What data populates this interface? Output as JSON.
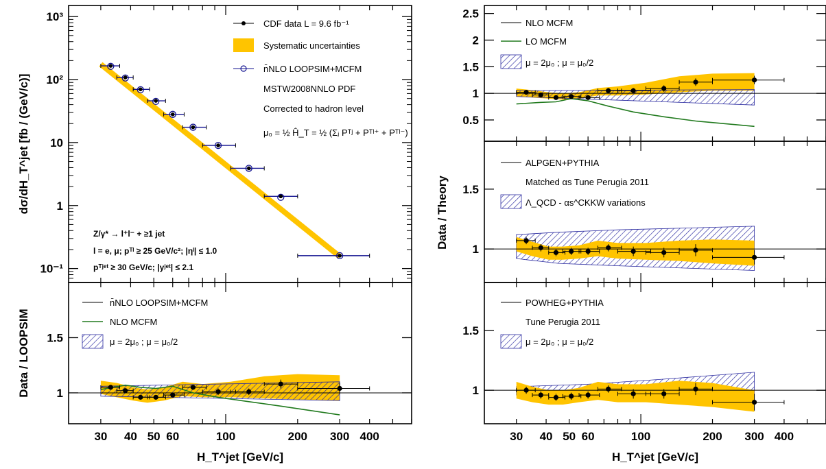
{
  "chart_data": [
    {
      "id": "xsec",
      "type": "scatter",
      "xscale": "log",
      "yscale": "log",
      "xlim": [
        22,
        600
      ],
      "ylim": [
        0.06,
        1500
      ],
      "ylabel": "dσ/dH_T^jet [fb / (GeV/c)]",
      "ytick_labels": [
        "10³",
        "10²",
        "10",
        "1",
        "10⁻¹"
      ],
      "ytick_values": [
        1000,
        100,
        10,
        1,
        0.1
      ],
      "legend": [
        "CDF data  L =  9.6 fb⁻¹",
        "Systematic uncertainties",
        "n̄NLO LOOPSIM+MCFM",
        "MSTW2008NNLO PDF",
        "Corrected to hadron level",
        "μ₀ = ½ Ĥ_T = ½ (Σⱼ Pᵀʲ + Pᵀˡ⁺ + Pᵀˡ⁻)"
      ],
      "annotations": [
        "Z/γ* → l⁺l⁻ + ≥1 jet",
        "l = e, μ;  pᵀˡ ≥ 25 GeV/c²; |ηˡ| ≤ 1.0",
        "pᵀʲᵉᵗ ≥ 30 GeV/c; |yʲᵉᵗ| ≤ 2.1"
      ],
      "series": [
        {
          "name": "CDF data  L =  9.6 fb⁻¹",
          "x": [
            33,
            38,
            44,
            51,
            60,
            73,
            93,
            125,
            170,
            300
          ],
          "y": [
            165,
            108,
            70,
            46,
            28,
            17.5,
            9,
            3.9,
            1.4,
            0.16
          ],
          "xerr_lo": [
            3,
            3,
            3,
            4,
            5,
            7,
            13,
            20,
            25,
            100
          ],
          "xerr_hi": [
            3,
            3,
            4,
            5,
            7,
            10,
            17,
            20,
            30,
            100
          ]
        },
        {
          "name": "n̄NLO LOOPSIM+MCFM",
          "x": [
            33,
            38,
            44,
            51,
            60,
            73,
            93,
            125,
            170,
            300
          ],
          "y": [
            162,
            106,
            69,
            45,
            28,
            17.5,
            9,
            3.9,
            1.35,
            0.16
          ]
        }
      ],
      "band": {
        "name": "Systematic uncertainties",
        "x": [
          30,
          300
        ],
        "y": [
          175,
          0.155
        ]
      }
    },
    {
      "id": "loopsim_ratio",
      "type": "line",
      "xscale": "log",
      "xlim": [
        22,
        600
      ],
      "ylim": [
        0.72,
        2.0
      ],
      "xlabel": "H_T^jet  [GeV/c]",
      "ylabel": "Data / LOOPSIM",
      "ytick_labels": [
        "1",
        "1.5"
      ],
      "ytick_values": [
        1,
        1.5
      ],
      "xtick_labels": [
        "30",
        "40",
        "50",
        "60",
        "100",
        "200",
        "300",
        "400"
      ],
      "xtick_values": [
        30,
        40,
        50,
        60,
        100,
        200,
        300,
        400
      ],
      "legend": [
        "n̄NLO LOOPSIM+MCFM",
        "NLO MCFM",
        "μ = 2μ₀ ; μ = μ₀/2"
      ],
      "data": {
        "x": [
          33,
          38,
          44,
          51,
          60,
          73,
          93,
          125,
          170,
          300
        ],
        "y": [
          1.05,
          1.02,
          0.96,
          0.96,
          0.98,
          1.05,
          1.01,
          1.01,
          1.08,
          1.04
        ],
        "xerr_lo": [
          3,
          3,
          3,
          4,
          5,
          7,
          13,
          20,
          25,
          100
        ],
        "xerr_hi": [
          3,
          3,
          4,
          5,
          7,
          10,
          17,
          20,
          30,
          100
        ],
        "yerr": [
          0.02,
          0.02,
          0.02,
          0.02,
          0.02,
          0.02,
          0.03,
          0.03,
          0.04,
          0.05
        ]
      },
      "syst_band": {
        "x": [
          30,
          35,
          41,
          47,
          55,
          66,
          80,
          105,
          145,
          200,
          300
        ],
        "lo": [
          0.99,
          0.96,
          0.93,
          0.91,
          0.93,
          0.97,
          0.96,
          0.96,
          0.95,
          0.94,
          0.93
        ],
        "hi": [
          1.11,
          1.09,
          1.05,
          1.03,
          1.05,
          1.1,
          1.08,
          1.1,
          1.15,
          1.17,
          1.16
        ]
      },
      "scale_band": {
        "x": [
          30,
          300
        ],
        "lo": [
          0.97,
          0.93
        ],
        "hi": [
          1.06,
          1.1
        ]
      },
      "nlo_mcfm": {
        "x": [
          30,
          38,
          44,
          51,
          60,
          73,
          93,
          125,
          170,
          300
        ],
        "y": [
          1.03,
          1.07,
          1.05,
          1.04,
          1.06,
          1.0,
          0.96,
          0.92,
          0.88,
          0.8
        ]
      }
    },
    {
      "id": "mcfm_ratio",
      "type": "line",
      "xscale": "log",
      "xlim": [
        22,
        600
      ],
      "ylim": [
        0.1,
        2.65
      ],
      "ylabel": "Data / Theory",
      "ytick_labels": [
        "0.5",
        "1",
        "1.5",
        "2",
        "2.5"
      ],
      "ytick_values": [
        0.5,
        1,
        1.5,
        2,
        2.5
      ],
      "legend": [
        "NLO MCFM",
        "LO MCFM",
        "μ = 2μ₀ ; μ = μ₀/2"
      ],
      "data": {
        "x": [
          33,
          38,
          44,
          51,
          60,
          73,
          93,
          125,
          170,
          300
        ],
        "y": [
          1.02,
          0.97,
          0.92,
          0.94,
          0.92,
          1.05,
          1.05,
          1.09,
          1.21,
          1.25
        ],
        "xerr_lo": [
          3,
          3,
          3,
          4,
          5,
          7,
          13,
          20,
          25,
          100
        ],
        "xerr_hi": [
          3,
          3,
          4,
          5,
          7,
          10,
          17,
          20,
          30,
          100
        ],
        "yerr": [
          0.04,
          0.04,
          0.04,
          0.04,
          0.04,
          0.05,
          0.05,
          0.06,
          0.07,
          0.08
        ]
      },
      "syst_band": {
        "x": [
          30,
          35,
          41,
          47,
          55,
          66,
          80,
          105,
          145,
          200,
          300
        ],
        "lo": [
          0.94,
          0.92,
          0.9,
          0.88,
          0.9,
          0.96,
          0.96,
          0.98,
          1.02,
          1.05,
          1.05
        ],
        "hi": [
          1.09,
          1.06,
          1.02,
          1.0,
          1.02,
          1.1,
          1.13,
          1.2,
          1.32,
          1.37,
          1.38
        ]
      },
      "scale_band": {
        "x": [
          30,
          300
        ],
        "lo": [
          0.94,
          0.78
        ],
        "hi": [
          1.05,
          1.07
        ]
      },
      "lo_mcfm": {
        "x": [
          30,
          38,
          44,
          51,
          60,
          73,
          93,
          125,
          170,
          300
        ],
        "y": [
          0.8,
          0.83,
          0.84,
          0.9,
          0.86,
          0.76,
          0.65,
          0.56,
          0.48,
          0.38
        ]
      }
    },
    {
      "id": "alpgen_ratio",
      "type": "line",
      "xscale": "log",
      "xlim": [
        22,
        600
      ],
      "ylim": [
        0.72,
        1.9
      ],
      "ytick_labels": [
        "1",
        "1.5"
      ],
      "ytick_values": [
        1,
        1.5
      ],
      "legend": [
        "ALPGEN+PYTHIA",
        "Matched αs Tune Perugia 2011",
        "Λ_QCD - αs^CKKW variations"
      ],
      "data": {
        "x": [
          33,
          38,
          44,
          51,
          60,
          73,
          93,
          125,
          170,
          300
        ],
        "y": [
          1.07,
          1.01,
          0.97,
          0.98,
          0.98,
          1.01,
          0.98,
          0.97,
          0.99,
          0.93
        ],
        "xerr_lo": [
          3,
          3,
          3,
          4,
          5,
          7,
          13,
          20,
          25,
          100
        ],
        "xerr_hi": [
          3,
          3,
          4,
          5,
          7,
          10,
          17,
          20,
          30,
          100
        ],
        "yerr": [
          0.03,
          0.03,
          0.03,
          0.03,
          0.03,
          0.03,
          0.04,
          0.04,
          0.05,
          0.06
        ]
      },
      "syst_band": {
        "x": [
          30,
          35,
          41,
          47,
          55,
          66,
          80,
          105,
          145,
          200,
          300
        ],
        "lo": [
          0.98,
          0.94,
          0.91,
          0.91,
          0.92,
          0.94,
          0.92,
          0.91,
          0.9,
          0.88,
          0.86
        ],
        "hi": [
          1.1,
          1.06,
          1.02,
          1.02,
          1.03,
          1.07,
          1.05,
          1.05,
          1.07,
          1.08,
          1.07
        ]
      },
      "scale_band": {
        "x": [
          30,
          45,
          80,
          300
        ],
        "lo": [
          0.92,
          0.88,
          0.86,
          0.82
        ],
        "hi": [
          1.12,
          1.14,
          1.16,
          1.19
        ]
      }
    },
    {
      "id": "powheg_ratio",
      "type": "line",
      "xscale": "log",
      "xlim": [
        22,
        600
      ],
      "ylim": [
        0.72,
        1.9
      ],
      "xlabel": "H_T^jet  [GeV/c]",
      "ytick_labels": [
        "1",
        "1.5"
      ],
      "ytick_values": [
        1,
        1.5
      ],
      "xtick_labels": [
        "30",
        "40",
        "50",
        "60",
        "100",
        "200",
        "300",
        "400"
      ],
      "xtick_values": [
        30,
        40,
        50,
        60,
        100,
        200,
        300,
        400
      ],
      "legend": [
        "POWHEG+PYTHIA",
        "Tune Perugia 2011",
        "μ = 2μ₀ ; μ = μ₀/2"
      ],
      "data": {
        "x": [
          33,
          38,
          44,
          51,
          60,
          73,
          93,
          125,
          170,
          300
        ],
        "y": [
          1.0,
          0.96,
          0.94,
          0.95,
          0.96,
          1.01,
          0.97,
          0.97,
          1.01,
          0.9
        ],
        "xerr_lo": [
          3,
          3,
          3,
          4,
          5,
          7,
          13,
          20,
          25,
          100
        ],
        "xerr_hi": [
          3,
          3,
          4,
          5,
          7,
          10,
          17,
          20,
          30,
          100
        ],
        "yerr": [
          0.03,
          0.03,
          0.03,
          0.03,
          0.03,
          0.03,
          0.04,
          0.04,
          0.05,
          0.07
        ]
      },
      "syst_band": {
        "x": [
          30,
          35,
          41,
          47,
          55,
          66,
          80,
          105,
          145,
          200,
          300
        ],
        "lo": [
          0.93,
          0.9,
          0.88,
          0.88,
          0.9,
          0.92,
          0.9,
          0.9,
          0.88,
          0.86,
          0.82
        ],
        "hi": [
          1.07,
          1.03,
          1.0,
          1.0,
          1.02,
          1.07,
          1.05,
          1.05,
          1.08,
          1.06,
          1.0
        ]
      },
      "scale_band": {
        "x": [
          30,
          60,
          120,
          300
        ],
        "lo": [
          0.96,
          0.93,
          0.9,
          0.85
        ],
        "hi": [
          1.03,
          1.05,
          1.09,
          1.15
        ]
      }
    }
  ],
  "colors": {
    "band": "#ffc400",
    "hatch": "#2a2aa0",
    "nlo_green": "#217a1e",
    "theory_marker": "#10108f"
  },
  "icons": {
    "marker": "filled-circle",
    "open_marker": "open-circle"
  }
}
